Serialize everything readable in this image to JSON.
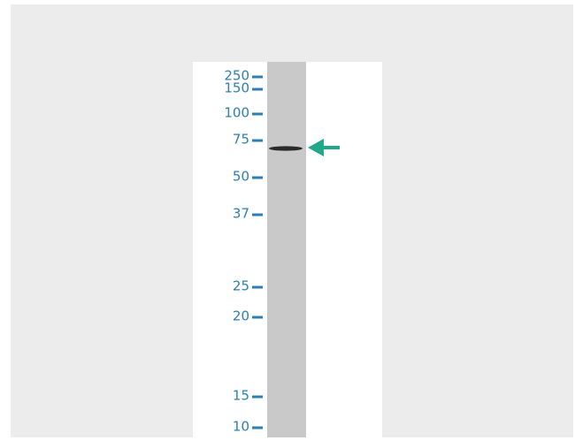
{
  "markers": [
    "250",
    "150",
    "100",
    "75",
    "50",
    "37",
    "25",
    "20",
    "15",
    "10"
  ]
}
